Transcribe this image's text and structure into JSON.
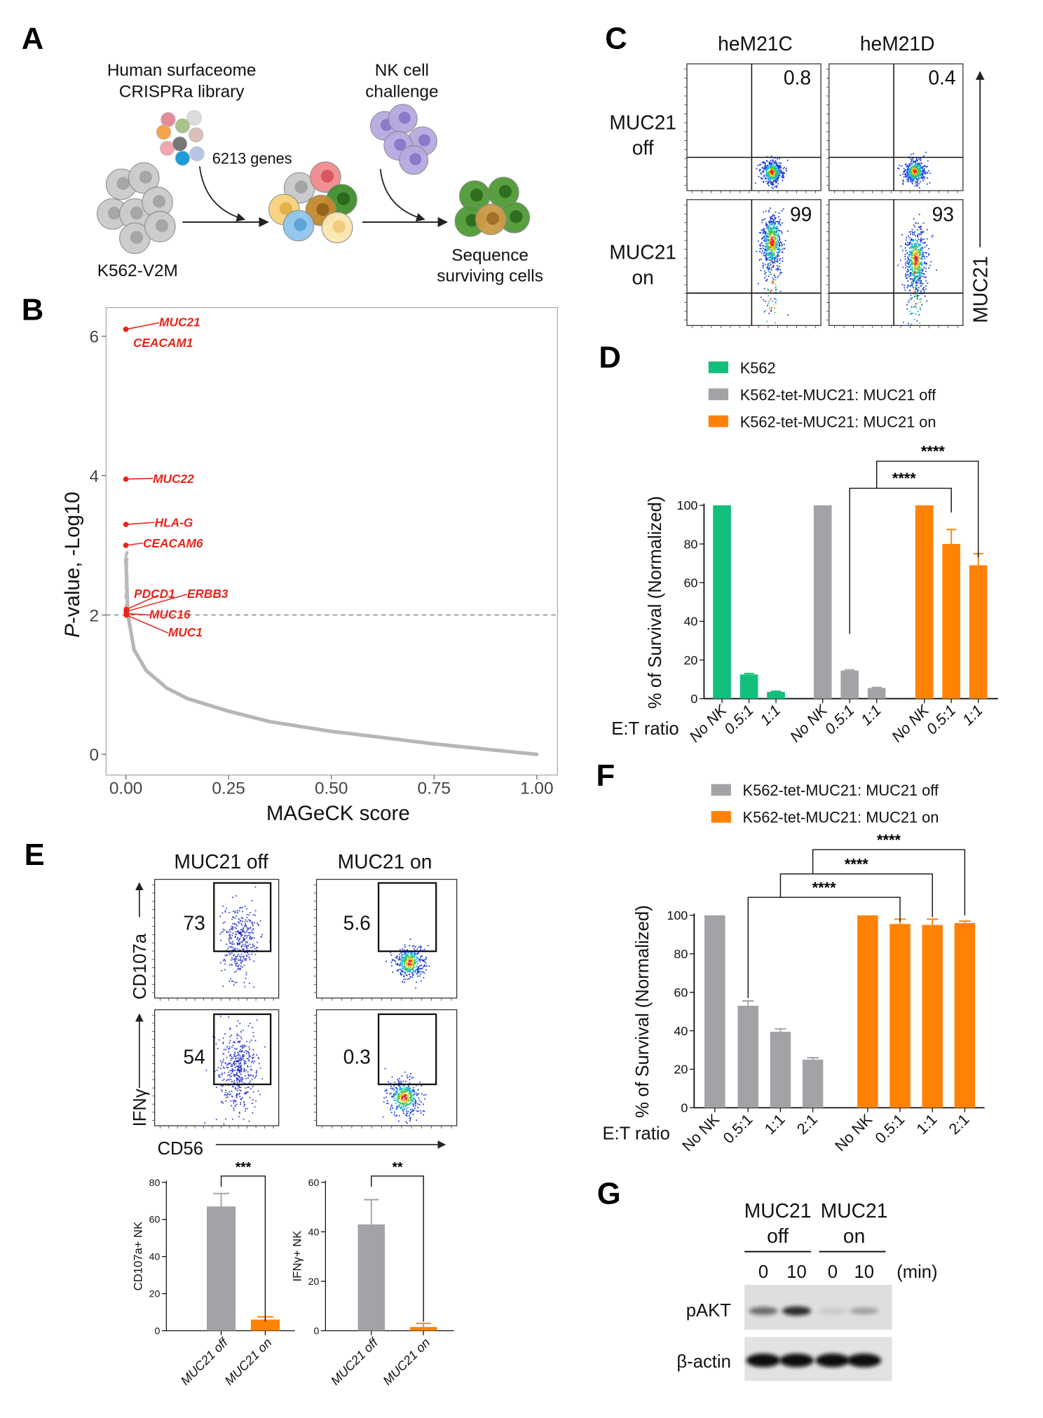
{
  "panel_labels": {
    "a": "A",
    "b": "B",
    "c": "C",
    "d": "D",
    "e": "E",
    "f": "F",
    "g": "G"
  },
  "colors": {
    "k562_green": "#13bf7d",
    "muc21_off_gray": "#a3a3a7",
    "muc21_on_orange": "#ff8205",
    "highlight_red": "#e8251c",
    "curve_gray": "#a9a9a9"
  },
  "panel_a": {
    "library_line1": "Human surfaceome",
    "library_line2": "CRISPRa library",
    "gene_count": "6213 genes",
    "nk_line1": "NK cell",
    "nk_line2": "challenge",
    "cell_line": "K562-V2M",
    "seq_line1": "Sequence",
    "seq_line2": "surviving cells"
  },
  "panel_c": {
    "columns": [
      "heM21C",
      "heM21D"
    ],
    "rows": [
      {
        "line1": "MUC21",
        "line2": "off",
        "values": [
          "0.8",
          "0.4"
        ]
      },
      {
        "line1": "MUC21",
        "line2": "on",
        "values": [
          "99",
          "93"
        ]
      }
    ],
    "y_axis_label": "MUC21"
  },
  "panel_e_flow": {
    "columns": [
      "MUC21 off",
      "MUC21 on"
    ],
    "rows": [
      {
        "y_label": "CD107a",
        "values": [
          "73",
          "5.6"
        ]
      },
      {
        "y_label": "IFNγ",
        "values": [
          "54",
          "0.3"
        ]
      }
    ],
    "x_label": "CD56"
  },
  "panel_g": {
    "groups": [
      {
        "line1": "MUC21",
        "line2": "off"
      },
      {
        "line1": "MUC21",
        "line2": "on"
      }
    ],
    "times": [
      "0",
      "10",
      "0",
      "10"
    ],
    "time_unit": "(min)",
    "bands": [
      "pAKT",
      "β-actin"
    ],
    "pakt_intensity": [
      0.55,
      0.85,
      0.1,
      0.3
    ],
    "actin_intensity": [
      1,
      1,
      1,
      1
    ]
  },
  "chart_data": [
    {
      "id": "B",
      "type": "scatter",
      "xlabel": "MAGeCK score",
      "ylabel_italic": "P",
      "ylabel": "-value, -Log10",
      "xlim": [
        0,
        1
      ],
      "ylim": [
        0,
        6.3
      ],
      "xticks": [
        "0.00",
        "0.25",
        "0.50",
        "0.75",
        "1.00"
      ],
      "yticks": [
        "0",
        "2",
        "4",
        "6"
      ],
      "threshold": 2,
      "curve": [
        [
          0,
          2.8
        ],
        [
          0.005,
          2.0
        ],
        [
          0.02,
          1.5
        ],
        [
          0.05,
          1.2
        ],
        [
          0.1,
          0.95
        ],
        [
          0.15,
          0.8
        ],
        [
          0.25,
          0.62
        ],
        [
          0.35,
          0.47
        ],
        [
          0.5,
          0.33
        ],
        [
          0.6,
          0.26
        ],
        [
          0.75,
          0.15
        ],
        [
          0.9,
          0.06
        ],
        [
          1.0,
          0.0
        ]
      ],
      "highlighted": [
        {
          "gene": "MUC21",
          "x": 0,
          "y": 6.1
        },
        {
          "gene": "CEACAM1",
          "x": 0,
          "y": 6.1
        },
        {
          "gene": "MUC22",
          "x": 0,
          "y": 3.95
        },
        {
          "gene": "HLA-G",
          "x": 0,
          "y": 3.3
        },
        {
          "gene": "CEACAM6",
          "x": 0,
          "y": 3.0
        },
        {
          "gene": "PDCD1",
          "x": 0.001,
          "y": 2.08
        },
        {
          "gene": "ERBB3",
          "x": 0.001,
          "y": 2.05
        },
        {
          "gene": "MUC16",
          "x": 0.001,
          "y": 2.02
        },
        {
          "gene": "MUC1",
          "x": 0.001,
          "y": 2.0
        }
      ]
    },
    {
      "id": "D",
      "type": "bar",
      "xlabel": "E:T  ratio",
      "ylabel": "% of Survival (Normalized)",
      "ylim": [
        0,
        100
      ],
      "yticks": [
        "0",
        "20",
        "40",
        "60",
        "80",
        "100"
      ],
      "legend_position": "top",
      "categories": [
        "No NK",
        "0.5:1",
        "1:1"
      ],
      "series": [
        {
          "name": "K562",
          "color": "#13bf7d",
          "values": [
            100,
            12.5,
            3.5
          ],
          "errors": [
            0,
            0.5,
            0.3
          ]
        },
        {
          "name": "K562-tet-MUC21: MUC21 off",
          "color": "#a3a3a7",
          "values": [
            100,
            14.5,
            5.5
          ],
          "errors": [
            0,
            0.4,
            0.3
          ]
        },
        {
          "name": "K562-tet-MUC21: MUC21 on",
          "color": "#ff8205",
          "values": [
            100,
            80,
            69
          ],
          "errors": [
            0,
            7.5,
            6
          ]
        }
      ],
      "comparisons": [
        {
          "from": [
            1,
            1
          ],
          "to": [
            2,
            1
          ],
          "label": "****"
        },
        {
          "from": [
            1,
            2
          ],
          "to": [
            2,
            2
          ],
          "label": "****"
        }
      ]
    },
    {
      "id": "F",
      "type": "bar",
      "xlabel": "E:T  ratio",
      "ylabel": "% of Survival (Normalized)",
      "ylim": [
        0,
        100
      ],
      "yticks": [
        "0",
        "20",
        "40",
        "60",
        "80",
        "100"
      ],
      "legend_position": "top",
      "categories": [
        "No NK",
        "0.5:1",
        "1:1",
        "2:1"
      ],
      "series": [
        {
          "name": "K562-tet-MUC21: MUC21 off",
          "color": "#a3a3a7",
          "values": [
            100,
            53,
            39.5,
            25
          ],
          "errors": [
            0,
            2.5,
            1.5,
            1
          ]
        },
        {
          "name": "K562-tet-MUC21: MUC21 on",
          "color": "#ff8205",
          "values": [
            100,
            95.5,
            95,
            96
          ],
          "errors": [
            0,
            2.5,
            3,
            1
          ]
        }
      ],
      "comparisons": [
        {
          "from": [
            0,
            1
          ],
          "to": [
            1,
            1
          ],
          "label": "****"
        },
        {
          "from": [
            0,
            2
          ],
          "to": [
            1,
            2
          ],
          "label": "****"
        },
        {
          "from": [
            0,
            3
          ],
          "to": [
            1,
            3
          ],
          "label": "****"
        }
      ]
    },
    {
      "id": "E-left",
      "type": "bar",
      "ylabel": "CD107a+ NK",
      "ylim": [
        0,
        80
      ],
      "yticks": [
        "0",
        "20",
        "40",
        "60",
        "80"
      ],
      "categories": [
        "MUC21 off",
        "MUC21 on"
      ],
      "series": [
        {
          "color": "#a3a3a7",
          "values": [
            67,
            null
          ],
          "errors": [
            7,
            null
          ]
        },
        {
          "color": "#ff8205",
          "values": [
            null,
            6
          ],
          "errors": [
            null,
            1.5
          ]
        }
      ],
      "comparisons": [
        {
          "from": [
            0,
            0
          ],
          "to": [
            1,
            1
          ],
          "label": "***"
        }
      ]
    },
    {
      "id": "E-right",
      "type": "bar",
      "ylabel": "IFNγ+ NK",
      "ylim": [
        0,
        60
      ],
      "yticks": [
        "0",
        "20",
        "40",
        "60"
      ],
      "categories": [
        "MUC21 off",
        "MUC21 on"
      ],
      "series": [
        {
          "color": "#a3a3a7",
          "values": [
            43,
            null
          ],
          "errors": [
            10,
            null
          ]
        },
        {
          "color": "#ff8205",
          "values": [
            null,
            1.5
          ],
          "errors": [
            null,
            1.5
          ]
        }
      ],
      "comparisons": [
        {
          "from": [
            0,
            0
          ],
          "to": [
            1,
            1
          ],
          "label": "**"
        }
      ]
    }
  ]
}
